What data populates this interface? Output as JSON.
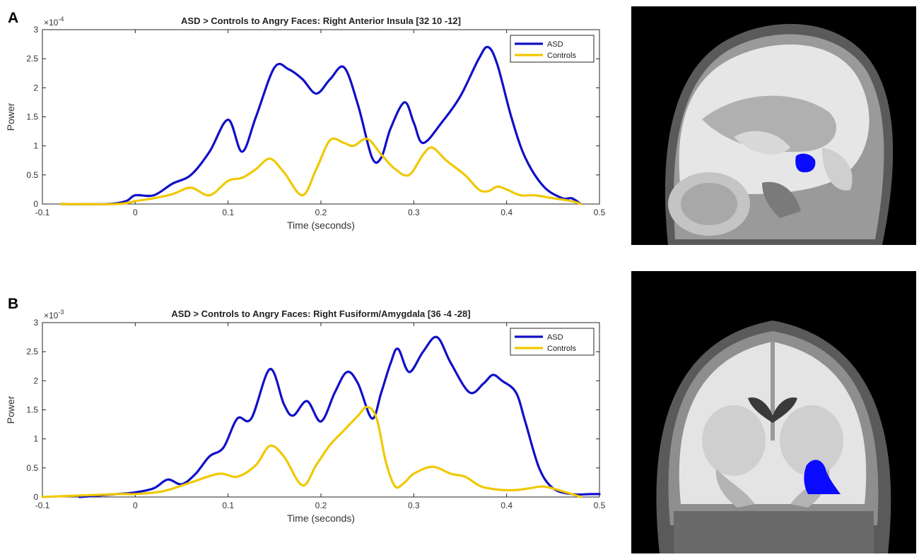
{
  "panels": [
    {
      "letter": "A"
    },
    {
      "letter": "B"
    }
  ],
  "chart_data": [
    {
      "type": "line",
      "title": "ASD > Controls to Angry Faces: Right Anterior Insula [32 10 -12]",
      "xlabel": "Time (seconds)",
      "ylabel": "Power",
      "exponent_label": "×10",
      "exponent_power": "-4",
      "xlim": [
        -0.1,
        0.5
      ],
      "ylim": [
        0,
        3
      ],
      "xticks": [
        "-0.1",
        "0",
        "0.1",
        "0.2",
        "0.3",
        "0.4",
        "0.5"
      ],
      "yticks": [
        "0",
        "0.5",
        "1",
        "1.5",
        "2",
        "2.5",
        "3"
      ],
      "legend_position": "top-right",
      "series": [
        {
          "name": "ASD",
          "color": "#1010c8",
          "x": [
            -0.08,
            -0.03,
            -0.01,
            0,
            0.02,
            0.04,
            0.06,
            0.08,
            0.1,
            0.115,
            0.13,
            0.15,
            0.165,
            0.18,
            0.195,
            0.21,
            0.225,
            0.24,
            0.255,
            0.265,
            0.275,
            0.29,
            0.3,
            0.31,
            0.33,
            0.35,
            0.37,
            0.38,
            0.39,
            0.405,
            0.42,
            0.44,
            0.46,
            0.47,
            0.48
          ],
          "values": [
            0,
            0,
            0.05,
            0.15,
            0.15,
            0.35,
            0.5,
            0.9,
            1.45,
            0.9,
            1.5,
            2.35,
            2.32,
            2.15,
            1.9,
            2.15,
            2.35,
            1.7,
            0.8,
            0.8,
            1.3,
            1.75,
            1.4,
            1.05,
            1.4,
            1.85,
            2.5,
            2.7,
            2.4,
            1.5,
            0.8,
            0.3,
            0.1,
            0.1,
            0
          ]
        },
        {
          "name": "Controls",
          "color": "#f0c800",
          "x": [
            -0.08,
            -0.02,
            0,
            0.02,
            0.04,
            0.06,
            0.08,
            0.1,
            0.115,
            0.13,
            0.145,
            0.16,
            0.18,
            0.195,
            0.21,
            0.225,
            0.235,
            0.25,
            0.265,
            0.28,
            0.295,
            0.31,
            0.32,
            0.335,
            0.355,
            0.37,
            0.38,
            0.39,
            0.4,
            0.415,
            0.43,
            0.45,
            0.47,
            0.48
          ],
          "values": [
            0,
            0,
            0.05,
            0.1,
            0.17,
            0.28,
            0.15,
            0.4,
            0.45,
            0.6,
            0.78,
            0.55,
            0.15,
            0.6,
            1.1,
            1.05,
            1.0,
            1.12,
            0.85,
            0.6,
            0.5,
            0.85,
            0.97,
            0.75,
            0.5,
            0.25,
            0.22,
            0.3,
            0.25,
            0.15,
            0.15,
            0.1,
            0.05,
            0
          ]
        }
      ]
    },
    {
      "type": "line",
      "title": "ASD > Controls to Angry Faces: Right Fusiform/Amygdala [36 -4 -28]",
      "xlabel": "Time (seconds)",
      "ylabel": "Power",
      "exponent_label": "×10",
      "exponent_power": "-3",
      "xlim": [
        -0.1,
        0.5
      ],
      "ylim": [
        0,
        3
      ],
      "xticks": [
        "-0.1",
        "0",
        "0.1",
        "0.2",
        "0.3",
        "0.4",
        "0.5"
      ],
      "yticks": [
        "0",
        "0.5",
        "1",
        "1.5",
        "2",
        "2.5",
        "3"
      ],
      "legend_position": "top-right",
      "series": [
        {
          "name": "ASD",
          "color": "#1010c8",
          "x": [
            -0.06,
            -0.02,
            0,
            0.02,
            0.035,
            0.05,
            0.065,
            0.08,
            0.095,
            0.11,
            0.125,
            0.145,
            0.16,
            0.17,
            0.185,
            0.2,
            0.215,
            0.228,
            0.24,
            0.255,
            0.265,
            0.275,
            0.283,
            0.295,
            0.31,
            0.325,
            0.34,
            0.36,
            0.375,
            0.385,
            0.395,
            0.41,
            0.42,
            0.435,
            0.45,
            0.47,
            0.49,
            0.5
          ],
          "values": [
            0,
            0.05,
            0.08,
            0.15,
            0.3,
            0.22,
            0.4,
            0.7,
            0.85,
            1.35,
            1.35,
            2.2,
            1.6,
            1.4,
            1.65,
            1.3,
            1.8,
            2.15,
            1.95,
            1.35,
            1.8,
            2.3,
            2.55,
            2.15,
            2.5,
            2.75,
            2.3,
            1.8,
            1.95,
            2.1,
            2.0,
            1.8,
            1.3,
            0.5,
            0.15,
            0.05,
            0.05,
            0.05
          ]
        },
        {
          "name": "Controls",
          "color": "#f0c800",
          "x": [
            -0.1,
            -0.02,
            0,
            0.03,
            0.06,
            0.09,
            0.11,
            0.13,
            0.145,
            0.16,
            0.18,
            0.195,
            0.21,
            0.225,
            0.24,
            0.25,
            0.26,
            0.27,
            0.28,
            0.29,
            0.3,
            0.32,
            0.34,
            0.355,
            0.37,
            0.38,
            0.395,
            0.41,
            0.425,
            0.44,
            0.46,
            0.48
          ],
          "values": [
            0,
            0.05,
            0.05,
            0.1,
            0.25,
            0.4,
            0.35,
            0.55,
            0.88,
            0.7,
            0.2,
            0.55,
            0.9,
            1.15,
            1.4,
            1.55,
            1.35,
            0.6,
            0.18,
            0.25,
            0.4,
            0.52,
            0.4,
            0.35,
            0.2,
            0.15,
            0.12,
            0.12,
            0.15,
            0.18,
            0.1,
            0
          ]
        }
      ]
    }
  ]
}
